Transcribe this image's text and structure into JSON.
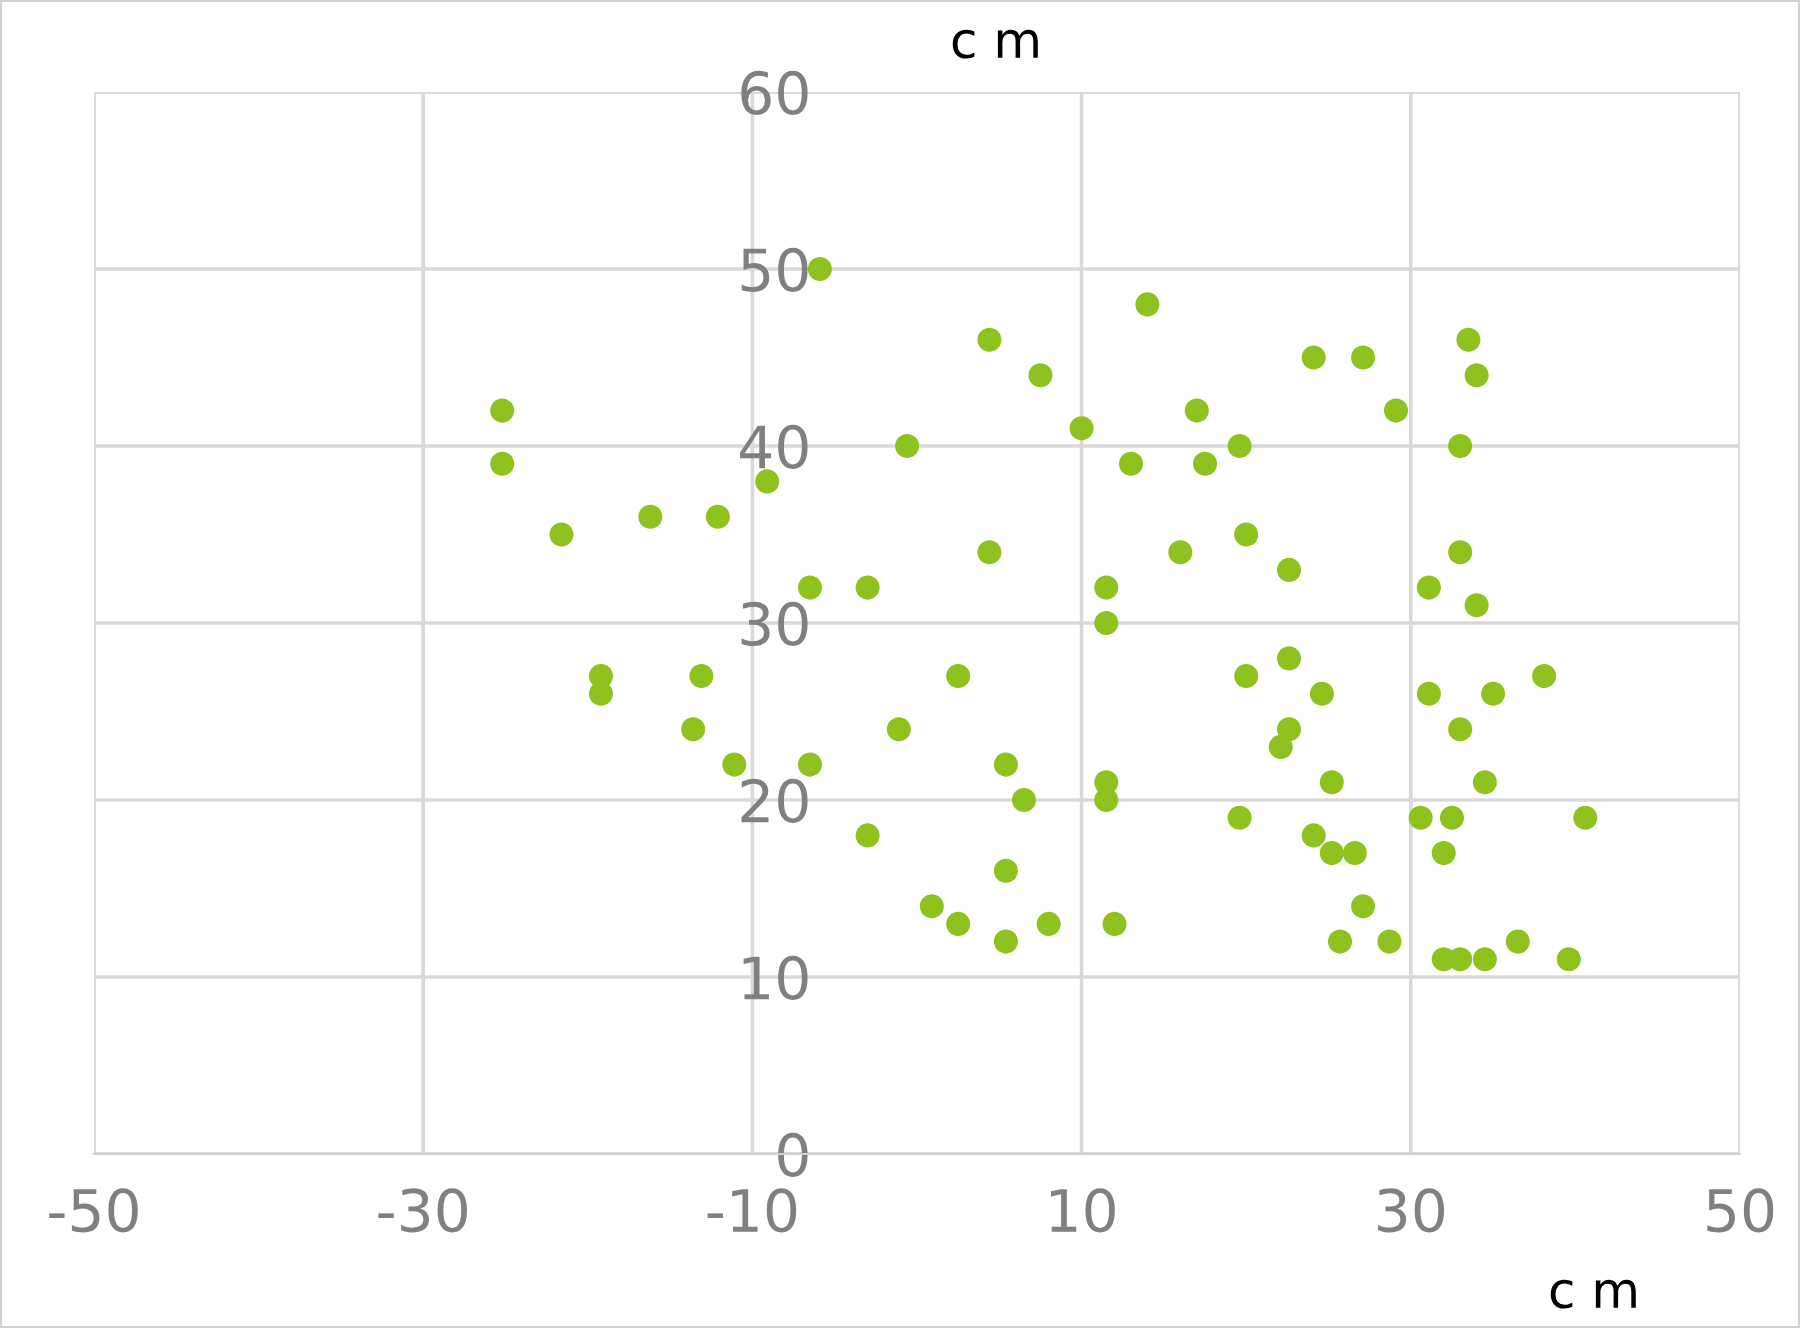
{
  "chart_data": {
    "type": "scatter",
    "xlabel": "c m",
    "ylabel": "c m",
    "xlim": [
      -50,
      50
    ],
    "xticks": [
      -50,
      -30,
      -10,
      10,
      30,
      50
    ],
    "ylim": [
      0,
      60
    ],
    "yticks": [
      0,
      10,
      20,
      30,
      40,
      50,
      60
    ],
    "grid": true,
    "marker": "circle",
    "series": [
      {
        "color": "#8dc21f",
        "x": [
          -25.2,
          -25.2,
          -21.6,
          -16.2,
          -12.1,
          -9.1,
          -5.9,
          -6.5,
          -3.0,
          -0.6,
          -19.2,
          -19.2,
          -13.1,
          -13.6,
          -11.1,
          -6.5,
          -3.0,
          -1.1,
          2.5,
          0.9,
          2.5,
          4.4,
          4.4,
          5.4,
          5.4,
          5.4,
          6.5,
          7.5,
          8.0,
          10.0,
          11.5,
          11.5,
          11.5,
          11.5,
          12.0,
          13.0,
          14.0,
          16.0,
          17.0,
          17.5,
          19.6,
          20.0,
          20.0,
          19.6,
          22.6,
          22.6,
          22.6,
          22.1,
          24.1,
          27.1,
          29.1,
          24.6,
          25.2,
          24.1,
          25.2,
          26.6,
          27.1,
          25.7,
          28.7,
          31.1,
          31.1,
          30.6,
          32.5,
          32.0,
          32.0,
          33.0,
          34.5,
          36.5,
          39.6,
          33.5,
          34.0,
          33.0,
          33.0,
          34.0,
          33.0,
          35.0,
          34.5,
          38.1,
          40.6
        ],
        "values": [
          42,
          39,
          35,
          36,
          36,
          38,
          50,
          32,
          32,
          40,
          27,
          26,
          27,
          24,
          22,
          22,
          18,
          24,
          27,
          14,
          13,
          46,
          34,
          22,
          16,
          12,
          20,
          44,
          13,
          41,
          32,
          30,
          21,
          20,
          13,
          39,
          48,
          34,
          42,
          39,
          40,
          35,
          27,
          19,
          33,
          28,
          24,
          23,
          45,
          45,
          42,
          26,
          21,
          18,
          17,
          17,
          14,
          12,
          12,
          32,
          26,
          19,
          19,
          17,
          11,
          11,
          11,
          12,
          11,
          46,
          44,
          40,
          34,
          31,
          24,
          26,
          21,
          27,
          19
        ]
      }
    ]
  }
}
